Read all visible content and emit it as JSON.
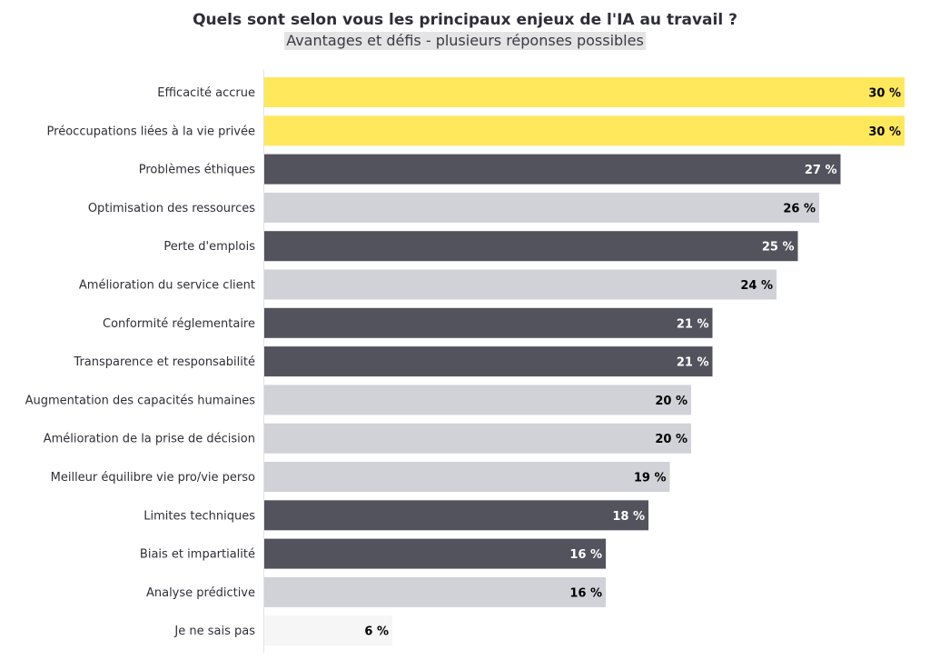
{
  "chart_data": {
    "type": "bar",
    "orientation": "horizontal",
    "title": "Quels sont selon vous les principaux enjeux de l'IA au travail ?",
    "subtitle": "Avantages et défis - plusieurs réponses possibles",
    "xlim": [
      0,
      30
    ],
    "grid": false,
    "legend": "none",
    "value_suffix": " %",
    "categories": [
      "Efficacité accrue",
      "Préoccupations liées à la vie privée",
      "Problèmes éthiques",
      "Optimisation des ressources",
      "Perte d'emplois",
      "Amélioration du service client",
      "Conformité réglementaire",
      "Transparence et responsabilité",
      "Augmentation des capacités humaines",
      "Amélioration de la prise de décision",
      "Meilleur équilibre vie pro/vie perso",
      "Limites techniques",
      "Biais et impartialité",
      "Analyse prédictive",
      "Je ne sais pas"
    ],
    "values": [
      30,
      30,
      27,
      26,
      25,
      24,
      21,
      21,
      20,
      20,
      19,
      18,
      16,
      16,
      6
    ],
    "bar_colors": [
      "#ffe85c",
      "#ffe85c",
      "#53535d",
      "#d1d2d8",
      "#53535d",
      "#d1d2d8",
      "#53535d",
      "#53535d",
      "#d1d2d8",
      "#d1d2d8",
      "#d1d2d8",
      "#53535d",
      "#53535d",
      "#d1d2d8",
      "#f6f6f7"
    ],
    "label_colors": [
      "#000000",
      "#000000",
      "#ffffff",
      "#000000",
      "#ffffff",
      "#000000",
      "#ffffff",
      "#ffffff",
      "#000000",
      "#000000",
      "#000000",
      "#ffffff",
      "#ffffff",
      "#000000",
      "#000000"
    ]
  }
}
